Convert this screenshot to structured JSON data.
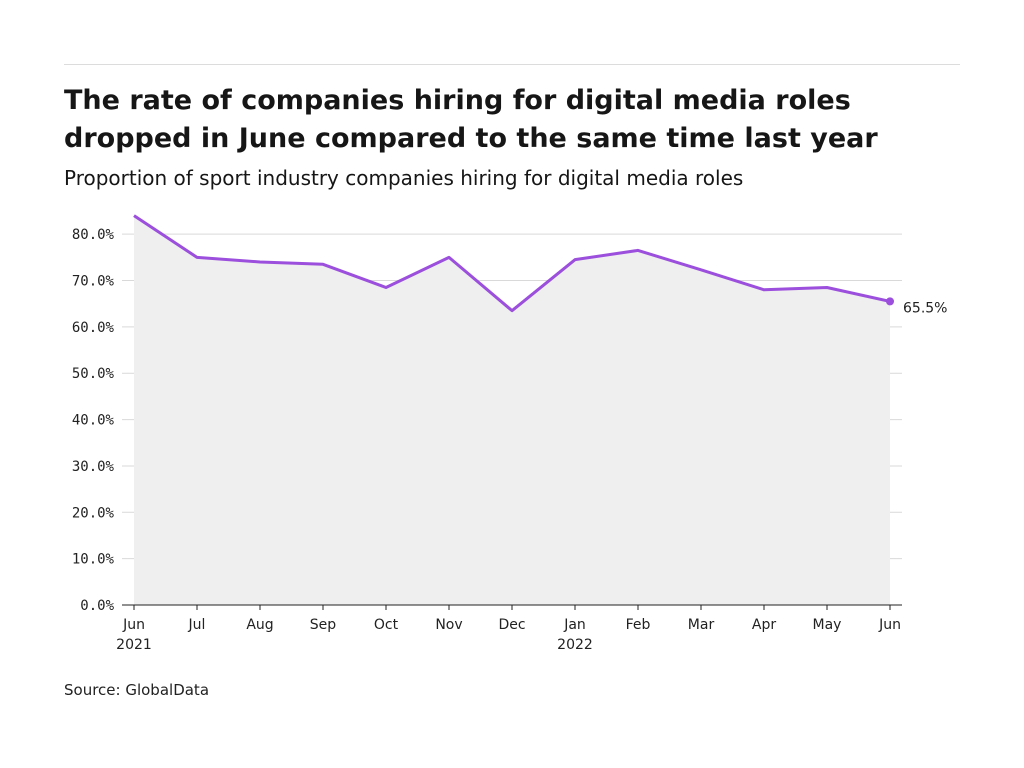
{
  "header": {
    "title": "The rate of companies hiring for digital media roles dropped in June compared to the same time last year",
    "subtitle": "Proportion of sport industry companies hiring for digital media roles"
  },
  "footer": {
    "source": "Source: GlobalData"
  },
  "chart_data": {
    "type": "area",
    "title": "The rate of companies hiring for digital media roles dropped in June compared to the same time last year",
    "subtitle": "Proportion of sport industry companies hiring for digital media roles",
    "categories": [
      "Jun 2021",
      "Jul",
      "Aug",
      "Sep",
      "Oct",
      "Nov",
      "Dec",
      "Jan 2022",
      "Feb",
      "Mar",
      "Apr",
      "May",
      "Jun"
    ],
    "x_tick_labels": [
      {
        "month": "Jun",
        "year": "2021"
      },
      {
        "month": "Jul",
        "year": ""
      },
      {
        "month": "Aug",
        "year": ""
      },
      {
        "month": "Sep",
        "year": ""
      },
      {
        "month": "Oct",
        "year": ""
      },
      {
        "month": "Nov",
        "year": ""
      },
      {
        "month": "Dec",
        "year": ""
      },
      {
        "month": "Jan",
        "year": "2022"
      },
      {
        "month": "Feb",
        "year": ""
      },
      {
        "month": "Mar",
        "year": ""
      },
      {
        "month": "Apr",
        "year": ""
      },
      {
        "month": "May",
        "year": ""
      },
      {
        "month": "Jun",
        "year": ""
      }
    ],
    "series": [
      {
        "values": [
          84.0,
          75.0,
          74.0,
          73.5,
          68.5,
          75.0,
          63.5,
          74.5,
          76.5,
          72.3,
          68.0,
          68.5,
          65.5
        ]
      }
    ],
    "end_label": "65.5%",
    "y_ticks": [
      0,
      10,
      20,
      30,
      40,
      50,
      60,
      70,
      80
    ],
    "y_tick_labels": [
      "0.0%",
      "10.0%",
      "20.0%",
      "30.0%",
      "40.0%",
      "50.0%",
      "60.0%",
      "70.0%",
      "80.0%"
    ],
    "ylim": [
      0,
      85
    ],
    "xlabel": "",
    "ylabel": "",
    "grid": true,
    "legend": "none",
    "colors": {
      "line": "#9b4fdc",
      "area": "#efefef",
      "grid": "#d9d9d9",
      "axis": "#222222"
    }
  }
}
